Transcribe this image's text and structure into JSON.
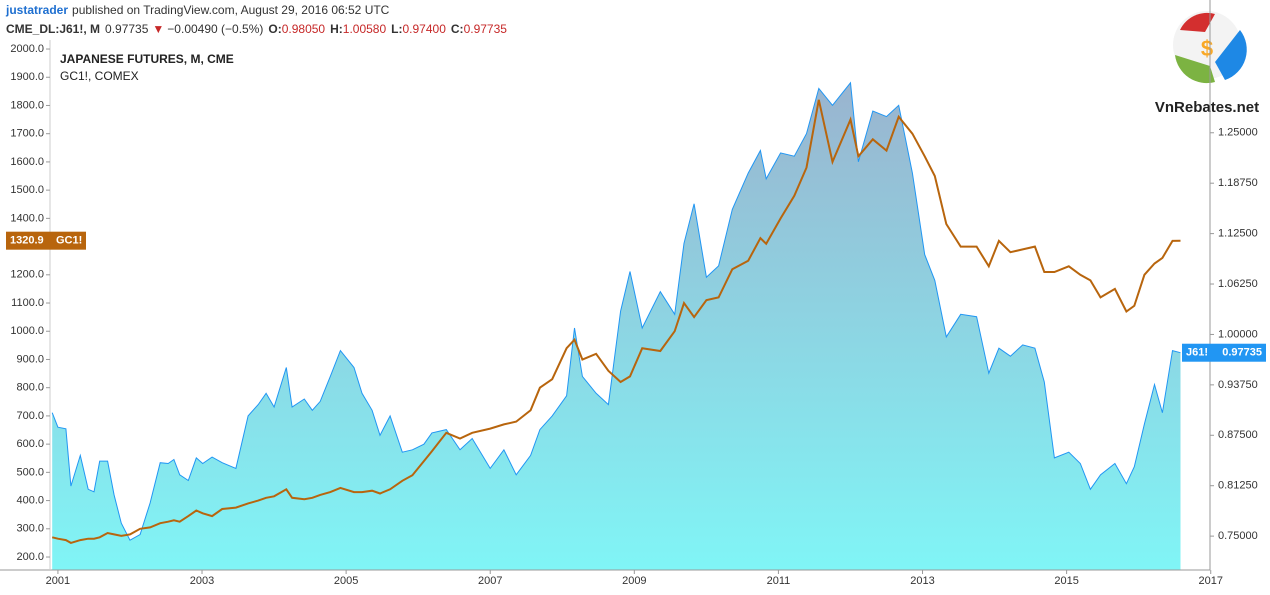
{
  "header": {
    "author": "justatrader",
    "published": "published on TradingView.com, August 29, 2016 06:52 UTC",
    "symbol": "CME_DL:J61!, M",
    "last": "0.97735",
    "arrow": "▼",
    "change": "−0.00490 (−0.5%)",
    "ohlc": [
      {
        "key": "O:",
        "value": "0.98050"
      },
      {
        "key": "H:",
        "value": "1.00580"
      },
      {
        "key": "L:",
        "value": "0.97400"
      },
      {
        "key": "C:",
        "value": "0.97735"
      }
    ]
  },
  "logo": "VnRebates.net",
  "chart_data": {
    "type": "line",
    "x": [
      2000.92,
      2001.0,
      2001.11,
      2001.18,
      2001.31,
      2001.42,
      2001.5,
      2001.58,
      2001.69,
      2001.78,
      2001.88,
      2002.0,
      2002.14,
      2002.28,
      2002.42,
      2002.53,
      2002.61,
      2002.69,
      2002.81,
      2002.92,
      2003.01,
      2003.14,
      2003.28,
      2003.47,
      2003.64,
      2003.78,
      2003.89,
      2004.0,
      2004.17,
      2004.25,
      2004.42,
      2004.53,
      2004.64,
      2004.78,
      2004.92,
      2005.11,
      2005.22,
      2005.36,
      2005.47,
      2005.61,
      2005.78,
      2005.92,
      2006.08,
      2006.19,
      2006.39,
      2006.58,
      2006.75,
      2007.0,
      2007.19,
      2007.36,
      2007.56,
      2007.69,
      2007.86,
      2008.06,
      2008.17,
      2008.28,
      2008.47,
      2008.64,
      2008.81,
      2008.94,
      2009.11,
      2009.36,
      2009.56,
      2009.69,
      2009.83,
      2010.0,
      2010.17,
      2010.36,
      2010.58,
      2010.75,
      2010.83,
      2011.03,
      2011.22,
      2011.39,
      2011.56,
      2011.75,
      2012.0,
      2012.11,
      2012.31,
      2012.5,
      2012.67,
      2012.86,
      2013.03,
      2013.17,
      2013.33,
      2013.53,
      2013.75,
      2013.92,
      2014.06,
      2014.22,
      2014.39,
      2014.56,
      2014.69,
      2014.83,
      2015.03,
      2015.19,
      2015.33,
      2015.47,
      2015.67,
      2015.83,
      2015.94,
      2016.08,
      2016.22,
      2016.33,
      2016.47,
      2016.58
    ],
    "series": [
      {
        "name": "JAPANESE FUTURES, M, CME",
        "tag": "J61!",
        "axis": "y2",
        "kind": "area",
        "color": "#2196f3",
        "fill_top": "#9ab4cf",
        "fill_bottom": "#80f5f6",
        "values": [
          0.903,
          0.885,
          0.883,
          0.812,
          0.85,
          0.808,
          0.805,
          0.843,
          0.843,
          0.801,
          0.766,
          0.745,
          0.752,
          0.791,
          0.841,
          0.84,
          0.845,
          0.826,
          0.819,
          0.847,
          0.84,
          0.848,
          0.841,
          0.834,
          0.899,
          0.913,
          0.927,
          0.91,
          0.959,
          0.91,
          0.92,
          0.906,
          0.917,
          0.948,
          0.98,
          0.959,
          0.927,
          0.906,
          0.875,
          0.899,
          0.854,
          0.857,
          0.864,
          0.878,
          0.882,
          0.857,
          0.871,
          0.834,
          0.857,
          0.826,
          0.85,
          0.882,
          0.899,
          0.924,
          1.008,
          0.948,
          0.927,
          0.913,
          1.029,
          1.078,
          1.008,
          1.053,
          1.025,
          1.113,
          1.162,
          1.071,
          1.085,
          1.155,
          1.2,
          1.228,
          1.193,
          1.225,
          1.221,
          1.249,
          1.305,
          1.284,
          1.312,
          1.214,
          1.277,
          1.27,
          1.284,
          1.2,
          1.099,
          1.067,
          0.997,
          1.025,
          1.022,
          0.952,
          0.983,
          0.973,
          0.987,
          0.983,
          0.941,
          0.847,
          0.854,
          0.84,
          0.808,
          0.826,
          0.84,
          0.815,
          0.836,
          0.889,
          0.938,
          0.903,
          0.98,
          0.97735
        ]
      },
      {
        "name": "GC1!, COMEX",
        "tag": "GC1!",
        "axis": "y",
        "kind": "line",
        "color": "#b8650d",
        "values": [
          270,
          265,
          260,
          250,
          260,
          265,
          265,
          270,
          285,
          280,
          275,
          280,
          300,
          305,
          320,
          325,
          330,
          325,
          345,
          365,
          355,
          345,
          370,
          375,
          390,
          400,
          410,
          415,
          440,
          410,
          405,
          410,
          420,
          430,
          445,
          430,
          430,
          435,
          425,
          440,
          470,
          490,
          540,
          575,
          640,
          620,
          640,
          655,
          670,
          680,
          720,
          800,
          830,
          940,
          970,
          900,
          920,
          860,
          820,
          840,
          940,
          930,
          1000,
          1100,
          1050,
          1110,
          1120,
          1220,
          1250,
          1330,
          1310,
          1400,
          1480,
          1580,
          1820,
          1600,
          1750,
          1620,
          1680,
          1640,
          1760,
          1700,
          1620,
          1550,
          1380,
          1300,
          1300,
          1230,
          1320,
          1280,
          1290,
          1300,
          1210,
          1210,
          1230,
          1200,
          1180,
          1120,
          1150,
          1070,
          1090,
          1200,
          1240,
          1260,
          1320,
          1320.9
        ]
      }
    ],
    "xlim": [
      2000.89,
      2016.99
    ],
    "xticks": [
      2001,
      2003,
      2005,
      2007,
      2009,
      2011,
      2013,
      2015,
      2017
    ],
    "ylim": [
      154,
      2032
    ],
    "yticks": [
      {
        "value": 200,
        "label": "200.0"
      },
      {
        "value": 300,
        "label": "300.0"
      },
      {
        "value": 400,
        "label": "400.0"
      },
      {
        "value": 500,
        "label": "500.0"
      },
      {
        "value": 600,
        "label": "600.0"
      },
      {
        "value": 700,
        "label": "700.0"
      },
      {
        "value": 800,
        "label": "800.0"
      },
      {
        "value": 900,
        "label": "900.0"
      },
      {
        "value": 1000,
        "label": "1000.0"
      },
      {
        "value": 1100,
        "label": "1100.0"
      },
      {
        "value": 1200,
        "label": "1200.0"
      },
      {
        "value": 1300,
        "label": "1300.0"
      },
      {
        "value": 1400,
        "label": "1400.0"
      },
      {
        "value": 1500,
        "label": "1500.0"
      },
      {
        "value": 1600,
        "label": "1600.0"
      },
      {
        "value": 1700,
        "label": "1700.0"
      },
      {
        "value": 1800,
        "label": "1800.0"
      },
      {
        "value": 1900,
        "label": "1900.0"
      },
      {
        "value": 2000,
        "label": "2000.0"
      }
    ],
    "y2lim": [
      0.708,
      1.365
    ],
    "y2ticks": [
      {
        "value": 0.75,
        "label": "0.75000"
      },
      {
        "value": 0.8125,
        "label": "0.81250"
      },
      {
        "value": 0.875,
        "label": "0.87500"
      },
      {
        "value": 0.9375,
        "label": "0.93750"
      },
      {
        "value": 1,
        "label": "1.00000"
      },
      {
        "value": 1.0625,
        "label": "1.06250"
      },
      {
        "value": 1.125,
        "label": "1.12500"
      },
      {
        "value": 1.1875,
        "label": "1.18750"
      },
      {
        "value": 1.25,
        "label": "1.25000"
      }
    ],
    "grid": false
  }
}
